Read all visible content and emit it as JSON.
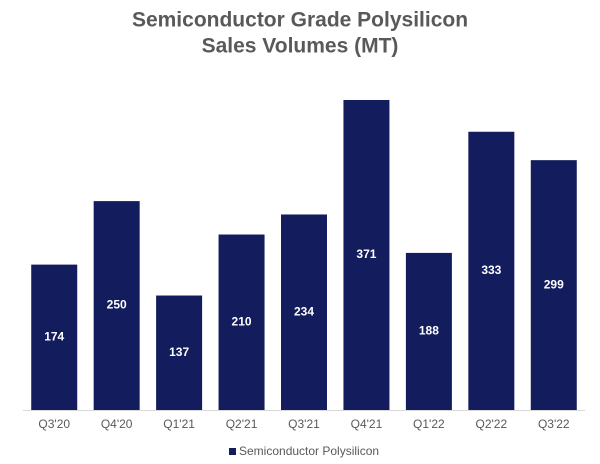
{
  "chart_data": {
    "type": "bar",
    "title": [
      "Semiconductor Grade Polysilicon",
      "Sales Volumes (MT)"
    ],
    "categories": [
      "Q3'20",
      "Q4'20",
      "Q1'21",
      "Q2'21",
      "Q3'21",
      "Q4'21",
      "Q1'22",
      "Q2'22",
      "Q3'22"
    ],
    "series": [
      {
        "name": "Semiconductor Polysilicon",
        "color": "#131c5c",
        "values": [
          174,
          250,
          137,
          210,
          234,
          371,
          188,
          333,
          299
        ]
      }
    ],
    "legend": "bottom"
  }
}
